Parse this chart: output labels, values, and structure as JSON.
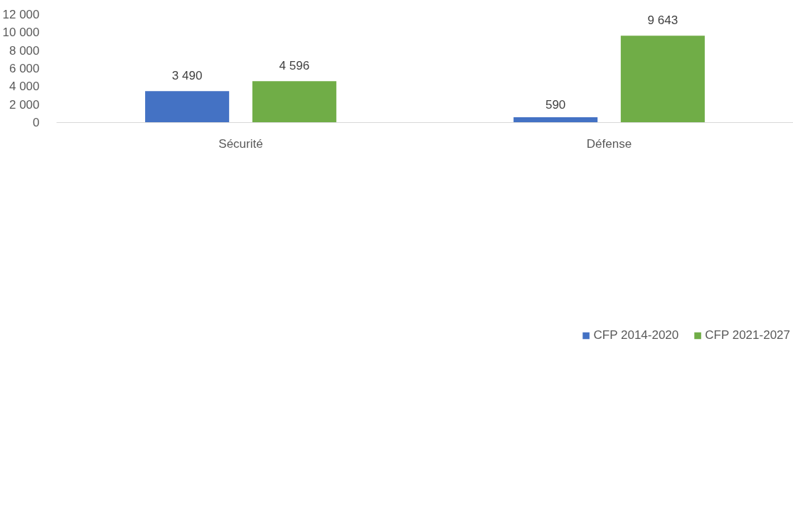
{
  "chart_data": {
    "type": "bar",
    "categories": [
      "Sécurité",
      "Défense"
    ],
    "series": [
      {
        "name": "CFP 2014-2020",
        "color": "#4472c4",
        "values": [
          3490,
          590
        ],
        "value_labels": [
          "3 490",
          "590"
        ]
      },
      {
        "name": "CFP 2021-2027",
        "color": "#70ad47",
        "values": [
          4596,
          9643
        ],
        "value_labels": [
          "4 596",
          "9 643"
        ]
      }
    ],
    "ylim": [
      0,
      12000
    ],
    "yticks": [
      0,
      {
        "value": 2000,
        "label": "2 000"
      },
      {
        "value": 4000,
        "label": "4 000"
      },
      {
        "value": 6000,
        "label": "6 000"
      },
      {
        "value": 8000,
        "label": "8 000"
      },
      {
        "value": 10000,
        "label": "10 000"
      },
      {
        "value": 12000,
        "label": "12 000"
      }
    ],
    "grid": false,
    "legend": "bottom"
  }
}
